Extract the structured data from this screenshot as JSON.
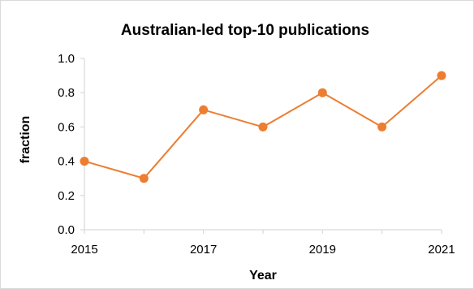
{
  "chart_data": {
    "type": "line",
    "title": "Australian-led top-10 publications",
    "xlabel": "Year",
    "ylabel": "fraction",
    "x": [
      2015,
      2016,
      2017,
      2018,
      2019,
      2020,
      2021
    ],
    "x_tick_labels": [
      "2015",
      "2017",
      "2019",
      "2021"
    ],
    "x_ticks": [
      2015,
      2017,
      2019,
      2021
    ],
    "y_tick_labels": [
      "0.0",
      "0.2",
      "0.4",
      "0.6",
      "0.8",
      "1.0"
    ],
    "y_ticks": [
      0.0,
      0.2,
      0.4,
      0.6,
      0.8,
      1.0
    ],
    "ylim": [
      0.0,
      1.0
    ],
    "xlim": [
      2015,
      2021
    ],
    "series": [
      {
        "values": [
          0.4,
          0.3,
          0.7,
          0.6,
          0.8,
          0.6,
          0.9
        ],
        "color": "#ed7d31"
      }
    ],
    "grid": false,
    "legend": "none"
  },
  "colors": {
    "axis": "#d9d9d9",
    "series": "#ed7d31"
  }
}
